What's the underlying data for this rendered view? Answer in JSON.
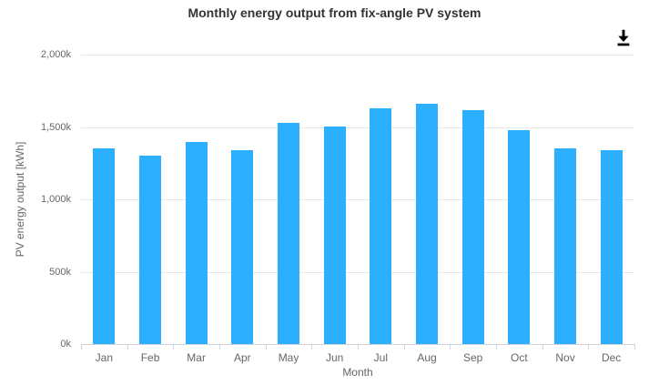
{
  "chart": {
    "title": "Monthly energy output from fix-angle PV system",
    "x_axis_title": "Month",
    "y_axis_title": "PV energy output [kWh]",
    "toolbar": {
      "download_icon": "download-icon"
    },
    "colors": {
      "bar": "#2caffe",
      "gridline": "#e6e6e6",
      "axis_line": "#ccd3dd",
      "labels": "#666666",
      "title": "#333333",
      "icon": "#000000"
    }
  },
  "chart_data": {
    "type": "bar",
    "title": "Monthly energy output from fix-angle PV system",
    "xlabel": "Month",
    "ylabel": "PV energy output [kWh]",
    "categories": [
      "Jan",
      "Feb",
      "Mar",
      "Apr",
      "May",
      "Jun",
      "Jul",
      "Aug",
      "Sep",
      "Oct",
      "Nov",
      "Dec"
    ],
    "values": [
      1355000,
      1305000,
      1395000,
      1340000,
      1530000,
      1500000,
      1630000,
      1660000,
      1615000,
      1480000,
      1355000,
      1340000
    ],
    "ylim": [
      0,
      2000000
    ],
    "yticks": [
      {
        "value": 0,
        "label": "0k"
      },
      {
        "value": 500000,
        "label": "500k"
      },
      {
        "value": 1000000,
        "label": "1,000k"
      },
      {
        "value": 1500000,
        "label": "1,500k"
      },
      {
        "value": 2000000,
        "label": "2,000k"
      }
    ],
    "grid": true,
    "legend": false,
    "bar_color": "#2caffe",
    "grid_color": "#e6e6e6",
    "axis_line_color": "#ccd3dd",
    "label_color": "#666666"
  }
}
